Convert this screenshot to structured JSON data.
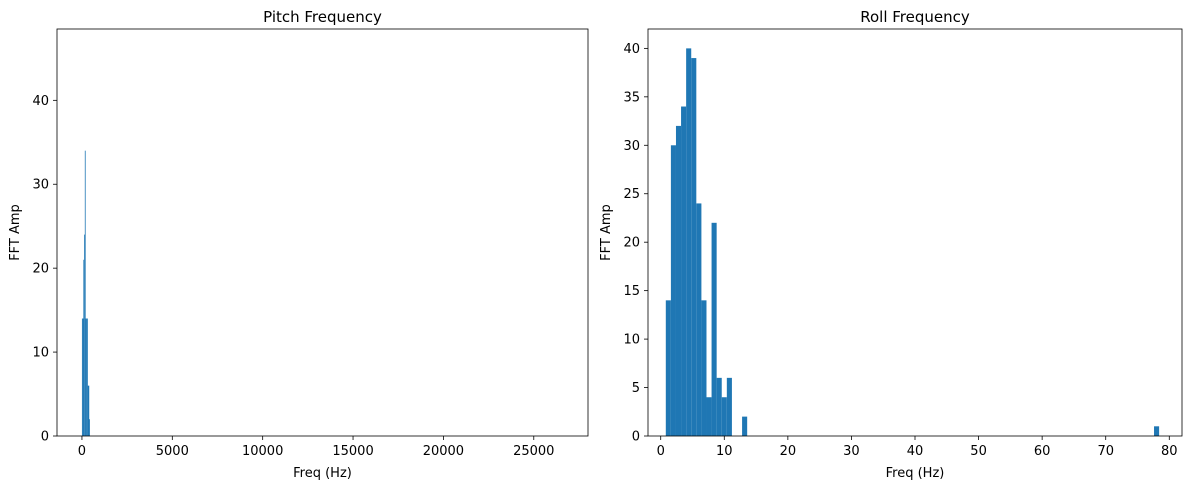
{
  "chart_data": [
    {
      "type": "bar",
      "title": "Pitch Frequency",
      "xlabel": "Freq (Hz)",
      "ylabel": "FFT Amp",
      "xlim": [
        -1380,
        28000
      ],
      "ylim": [
        0,
        48.5
      ],
      "xticks": [
        0,
        5000,
        10000,
        15000,
        20000,
        25000
      ],
      "yticks": [
        0,
        10,
        20,
        30,
        40
      ],
      "bar_color": "#1f77b4",
      "bin_width": 40,
      "bins": [
        {
          "x": 0,
          "value": 14
        },
        {
          "x": 40,
          "value": 14
        },
        {
          "x": 80,
          "value": 21
        },
        {
          "x": 120,
          "value": 24
        },
        {
          "x": 160,
          "value": 34
        },
        {
          "x": 200,
          "value": 14
        },
        {
          "x": 240,
          "value": 14
        },
        {
          "x": 280,
          "value": 14
        },
        {
          "x": 320,
          "value": 6
        },
        {
          "x": 360,
          "value": 6
        },
        {
          "x": 400,
          "value": 2
        }
      ]
    },
    {
      "type": "bar",
      "title": "Roll Frequency",
      "xlabel": "Freq (Hz)",
      "ylabel": "FFT Amp",
      "xlim": [
        -2,
        82
      ],
      "ylim": [
        0,
        42
      ],
      "xticks": [
        0,
        10,
        20,
        30,
        40,
        50,
        60,
        70,
        80
      ],
      "yticks": [
        0,
        5,
        10,
        15,
        20,
        25,
        30,
        35,
        40
      ],
      "bar_color": "#1f77b4",
      "bin_width": 0.8,
      "bins": [
        {
          "x": 0.8,
          "value": 14
        },
        {
          "x": 1.6,
          "value": 30
        },
        {
          "x": 2.4,
          "value": 32
        },
        {
          "x": 3.2,
          "value": 34
        },
        {
          "x": 4.0,
          "value": 40
        },
        {
          "x": 4.8,
          "value": 39
        },
        {
          "x": 5.6,
          "value": 24
        },
        {
          "x": 6.4,
          "value": 14
        },
        {
          "x": 7.2,
          "value": 4
        },
        {
          "x": 8.0,
          "value": 22
        },
        {
          "x": 8.8,
          "value": 6
        },
        {
          "x": 9.6,
          "value": 4
        },
        {
          "x": 10.4,
          "value": 6
        },
        {
          "x": 12.8,
          "value": 2
        },
        {
          "x": 77.6,
          "value": 1
        }
      ]
    }
  ]
}
